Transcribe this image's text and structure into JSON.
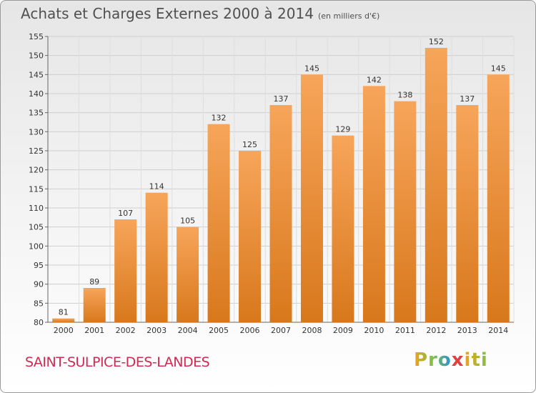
{
  "header": {
    "title": "Achats et Charges Externes 2000 à 2014",
    "subtitle": "(en milliers d'€)"
  },
  "footer": {
    "commune": "SAINT-SULPICE-DES-LANDES",
    "logo": {
      "p1": "Pro",
      "x": "x",
      "p2": "iti"
    }
  },
  "colors": {
    "bar_light": "#f7a55a",
    "bar_dark": "#d8781c",
    "commune": "#d02a52"
  },
  "chart_data": {
    "type": "bar",
    "title": "Achats et Charges Externes 2000 à 2014",
    "subtitle": "(en milliers d'€)",
    "categories": [
      "2000",
      "2001",
      "2002",
      "2003",
      "2004",
      "2005",
      "2006",
      "2007",
      "2008",
      "2009",
      "2010",
      "2011",
      "2012",
      "2013",
      "2014"
    ],
    "values": [
      81,
      89,
      107,
      114,
      105,
      132,
      125,
      137,
      145,
      129,
      142,
      138,
      152,
      137,
      145
    ],
    "ylim": [
      80,
      155
    ],
    "yticks": [
      80,
      85,
      90,
      95,
      100,
      105,
      110,
      115,
      120,
      125,
      130,
      135,
      140,
      145,
      150,
      155
    ],
    "grid": true,
    "legend": "none"
  }
}
